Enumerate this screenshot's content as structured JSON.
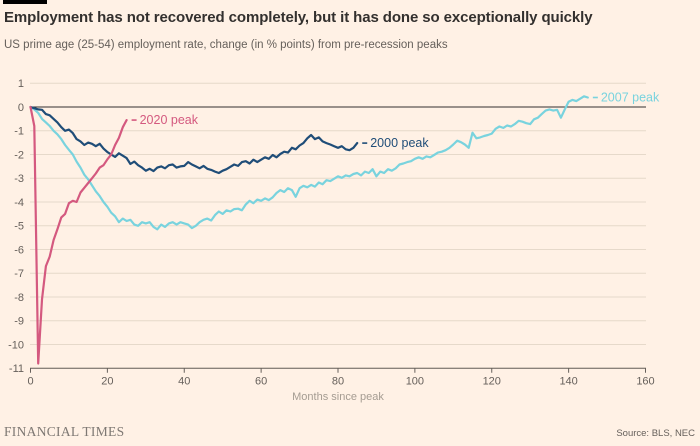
{
  "footer": {
    "brand": "FINANCIAL TIMES",
    "source": "Source: BLS, NEC"
  },
  "chart_data": {
    "type": "line",
    "title": "Employment has not recovered completely, but it has done so exceptionally quickly",
    "subtitle": "US prime age (25-54) employment rate, change (in % points) from pre-recession peaks",
    "xlabel": "Months since peak",
    "ylabel": "",
    "xlim": [
      0,
      160
    ],
    "ylim": [
      -11,
      1
    ],
    "x_ticks": [
      0,
      20,
      40,
      60,
      80,
      100,
      120,
      140,
      160
    ],
    "y_ticks": [
      1,
      0,
      -1,
      -2,
      -3,
      -4,
      -5,
      -6,
      -7,
      -8,
      -9,
      -10,
      -11
    ],
    "grid": true,
    "legend_position": "inline-end-of-line-labels",
    "colors": {
      "background": "#FFF1E5",
      "title_text": "#33302E",
      "subtitle_text": "#66605B",
      "axis_text": "#66605B",
      "axis_title_text": "#A59C92",
      "grid": "#E6D9CA",
      "zero_baseline": "#33302E",
      "axis_line": "#66605B",
      "brand_text": "#7E7873"
    },
    "series": [
      {
        "name": "2007 peak",
        "color": "#79D3DE",
        "points": [
          [
            0,
            0
          ],
          [
            1,
            -0.1
          ],
          [
            2,
            -0.25
          ],
          [
            3,
            -0.5
          ],
          [
            4,
            -0.65
          ],
          [
            5,
            -0.8
          ],
          [
            6,
            -1.0
          ],
          [
            7,
            -1.15
          ],
          [
            8,
            -1.35
          ],
          [
            9,
            -1.6
          ],
          [
            10,
            -1.8
          ],
          [
            11,
            -2.0
          ],
          [
            12,
            -2.3
          ],
          [
            13,
            -2.55
          ],
          [
            14,
            -2.85
          ],
          [
            15,
            -3.05
          ],
          [
            16,
            -3.3
          ],
          [
            17,
            -3.55
          ],
          [
            18,
            -3.75
          ],
          [
            19,
            -4.0
          ],
          [
            20,
            -4.2
          ],
          [
            21,
            -4.45
          ],
          [
            22,
            -4.6
          ],
          [
            23,
            -4.85
          ],
          [
            24,
            -4.7
          ],
          [
            25,
            -4.8
          ],
          [
            26,
            -4.75
          ],
          [
            27,
            -4.95
          ],
          [
            28,
            -5.0
          ],
          [
            29,
            -4.85
          ],
          [
            30,
            -4.9
          ],
          [
            31,
            -4.85
          ],
          [
            32,
            -5.05
          ],
          [
            33,
            -5.15
          ],
          [
            34,
            -4.95
          ],
          [
            35,
            -5.05
          ],
          [
            36,
            -4.9
          ],
          [
            37,
            -4.85
          ],
          [
            38,
            -4.95
          ],
          [
            39,
            -4.85
          ],
          [
            40,
            -4.9
          ],
          [
            41,
            -4.95
          ],
          [
            42,
            -5.1
          ],
          [
            43,
            -5.0
          ],
          [
            44,
            -4.85
          ],
          [
            45,
            -4.75
          ],
          [
            46,
            -4.7
          ],
          [
            47,
            -4.78
          ],
          [
            48,
            -4.55
          ],
          [
            49,
            -4.4
          ],
          [
            50,
            -4.5
          ],
          [
            51,
            -4.35
          ],
          [
            52,
            -4.4
          ],
          [
            53,
            -4.3
          ],
          [
            54,
            -4.28
          ],
          [
            55,
            -4.35
          ],
          [
            56,
            -4.1
          ],
          [
            57,
            -3.95
          ],
          [
            58,
            -4.05
          ],
          [
            59,
            -3.9
          ],
          [
            60,
            -3.95
          ],
          [
            61,
            -3.85
          ],
          [
            62,
            -3.92
          ],
          [
            63,
            -3.8
          ],
          [
            64,
            -3.62
          ],
          [
            65,
            -3.5
          ],
          [
            66,
            -3.58
          ],
          [
            67,
            -3.42
          ],
          [
            68,
            -3.5
          ],
          [
            69,
            -3.78
          ],
          [
            70,
            -3.42
          ],
          [
            71,
            -3.32
          ],
          [
            72,
            -3.38
          ],
          [
            73,
            -3.28
          ],
          [
            74,
            -3.35
          ],
          [
            75,
            -3.18
          ],
          [
            76,
            -3.25
          ],
          [
            77,
            -3.08
          ],
          [
            78,
            -3.12
          ],
          [
            79,
            -3.02
          ],
          [
            80,
            -2.92
          ],
          [
            81,
            -2.98
          ],
          [
            82,
            -2.88
          ],
          [
            83,
            -2.92
          ],
          [
            84,
            -2.82
          ],
          [
            85,
            -2.78
          ],
          [
            86,
            -2.88
          ],
          [
            87,
            -2.72
          ],
          [
            88,
            -2.78
          ],
          [
            89,
            -2.62
          ],
          [
            90,
            -2.92
          ],
          [
            91,
            -2.72
          ],
          [
            92,
            -2.78
          ],
          [
            93,
            -2.62
          ],
          [
            94,
            -2.68
          ],
          [
            95,
            -2.58
          ],
          [
            96,
            -2.42
          ],
          [
            97,
            -2.38
          ],
          [
            98,
            -2.32
          ],
          [
            99,
            -2.28
          ],
          [
            100,
            -2.18
          ],
          [
            101,
            -2.12
          ],
          [
            102,
            -2.18
          ],
          [
            103,
            -2.08
          ],
          [
            104,
            -2.12
          ],
          [
            105,
            -2.02
          ],
          [
            106,
            -1.92
          ],
          [
            107,
            -1.88
          ],
          [
            108,
            -1.82
          ],
          [
            109,
            -1.72
          ],
          [
            110,
            -1.58
          ],
          [
            111,
            -1.42
          ],
          [
            112,
            -1.48
          ],
          [
            113,
            -1.58
          ],
          [
            114,
            -1.72
          ],
          [
            115,
            -1.08
          ],
          [
            116,
            -1.32
          ],
          [
            117,
            -1.28
          ],
          [
            118,
            -1.22
          ],
          [
            119,
            -1.18
          ],
          [
            120,
            -1.12
          ],
          [
            121,
            -0.92
          ],
          [
            122,
            -0.82
          ],
          [
            123,
            -0.88
          ],
          [
            124,
            -0.78
          ],
          [
            125,
            -0.82
          ],
          [
            126,
            -0.72
          ],
          [
            127,
            -0.58
          ],
          [
            128,
            -0.62
          ],
          [
            129,
            -0.68
          ],
          [
            130,
            -0.72
          ],
          [
            131,
            -0.52
          ],
          [
            132,
            -0.45
          ],
          [
            133,
            -0.3
          ],
          [
            134,
            -0.15
          ],
          [
            135,
            -0.1
          ],
          [
            136,
            -0.15
          ],
          [
            137,
            -0.12
          ],
          [
            138,
            -0.45
          ],
          [
            139,
            -0.1
          ],
          [
            140,
            0.22
          ],
          [
            141,
            0.3
          ],
          [
            142,
            0.25
          ],
          [
            143,
            0.35
          ],
          [
            144,
            0.45
          ],
          [
            145,
            0.4
          ]
        ]
      },
      {
        "name": "2000 peak",
        "color": "#1F4D78",
        "points": [
          [
            0,
            0
          ],
          [
            1,
            -0.05
          ],
          [
            2,
            -0.1
          ],
          [
            3,
            -0.12
          ],
          [
            4,
            -0.3
          ],
          [
            5,
            -0.35
          ],
          [
            6,
            -0.5
          ],
          [
            7,
            -0.65
          ],
          [
            8,
            -0.85
          ],
          [
            9,
            -1.0
          ],
          [
            10,
            -0.95
          ],
          [
            11,
            -1.1
          ],
          [
            12,
            -1.35
          ],
          [
            13,
            -1.45
          ],
          [
            14,
            -1.6
          ],
          [
            15,
            -1.5
          ],
          [
            16,
            -1.55
          ],
          [
            17,
            -1.65
          ],
          [
            18,
            -1.55
          ],
          [
            19,
            -1.75
          ],
          [
            20,
            -1.9
          ],
          [
            21,
            -2.0
          ],
          [
            22,
            -2.1
          ],
          [
            23,
            -1.95
          ],
          [
            24,
            -2.05
          ],
          [
            25,
            -2.15
          ],
          [
            26,
            -2.4
          ],
          [
            27,
            -2.3
          ],
          [
            28,
            -2.45
          ],
          [
            29,
            -2.55
          ],
          [
            30,
            -2.68
          ],
          [
            31,
            -2.6
          ],
          [
            32,
            -2.7
          ],
          [
            33,
            -2.55
          ],
          [
            34,
            -2.5
          ],
          [
            35,
            -2.58
          ],
          [
            36,
            -2.45
          ],
          [
            37,
            -2.42
          ],
          [
            38,
            -2.55
          ],
          [
            39,
            -2.5
          ],
          [
            40,
            -2.48
          ],
          [
            41,
            -2.32
          ],
          [
            42,
            -2.42
          ],
          [
            43,
            -2.5
          ],
          [
            44,
            -2.58
          ],
          [
            45,
            -2.48
          ],
          [
            46,
            -2.6
          ],
          [
            47,
            -2.65
          ],
          [
            48,
            -2.72
          ],
          [
            49,
            -2.78
          ],
          [
            50,
            -2.68
          ],
          [
            51,
            -2.62
          ],
          [
            52,
            -2.52
          ],
          [
            53,
            -2.42
          ],
          [
            54,
            -2.48
          ],
          [
            55,
            -2.32
          ],
          [
            56,
            -2.28
          ],
          [
            57,
            -2.38
          ],
          [
            58,
            -2.22
          ],
          [
            59,
            -2.32
          ],
          [
            60,
            -2.22
          ],
          [
            61,
            -2.12
          ],
          [
            62,
            -2.18
          ],
          [
            63,
            -2.02
          ],
          [
            64,
            -2.12
          ],
          [
            65,
            -1.98
          ],
          [
            66,
            -1.88
          ],
          [
            67,
            -1.92
          ],
          [
            68,
            -1.72
          ],
          [
            69,
            -1.78
          ],
          [
            70,
            -1.62
          ],
          [
            71,
            -1.52
          ],
          [
            72,
            -1.32
          ],
          [
            73,
            -1.18
          ],
          [
            74,
            -1.35
          ],
          [
            75,
            -1.28
          ],
          [
            76,
            -1.45
          ],
          [
            77,
            -1.52
          ],
          [
            78,
            -1.58
          ],
          [
            79,
            -1.65
          ],
          [
            80,
            -1.72
          ],
          [
            81,
            -1.65
          ],
          [
            82,
            -1.78
          ],
          [
            83,
            -1.82
          ],
          [
            84,
            -1.72
          ],
          [
            85,
            -1.52
          ]
        ]
      },
      {
        "name": "2020 peak",
        "color": "#D4597F",
        "points": [
          [
            0,
            0
          ],
          [
            1,
            -0.8
          ],
          [
            2,
            -10.8
          ],
          [
            3,
            -8.1
          ],
          [
            4,
            -6.7
          ],
          [
            5,
            -6.3
          ],
          [
            6,
            -5.6
          ],
          [
            7,
            -5.15
          ],
          [
            8,
            -4.65
          ],
          [
            9,
            -4.5
          ],
          [
            10,
            -4.05
          ],
          [
            11,
            -3.95
          ],
          [
            12,
            -4.0
          ],
          [
            13,
            -3.6
          ],
          [
            14,
            -3.4
          ],
          [
            15,
            -3.2
          ],
          [
            16,
            -3.0
          ],
          [
            17,
            -2.8
          ],
          [
            18,
            -2.55
          ],
          [
            19,
            -2.45
          ],
          [
            20,
            -2.2
          ],
          [
            21,
            -2.0
          ],
          [
            22,
            -1.6
          ],
          [
            23,
            -1.3
          ],
          [
            24,
            -0.85
          ],
          [
            25,
            -0.55
          ]
        ]
      }
    ]
  }
}
